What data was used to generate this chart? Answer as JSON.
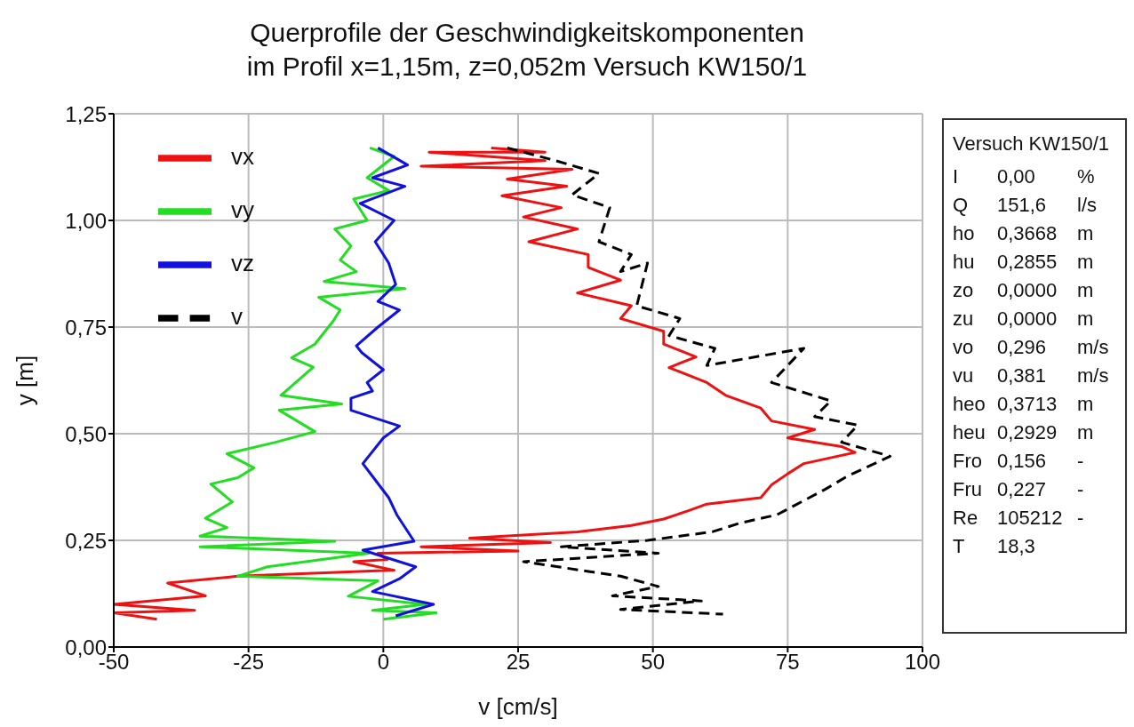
{
  "chart_data": {
    "type": "line",
    "title": "Querprofile der Geschwindigkeitskomponenten",
    "subtitle": "im Profil x=1,15m, z=0,052m Versuch KW150/1",
    "xlabel": "v [cm/s]",
    "ylabel": "y [m]",
    "xlim": [
      -50,
      100
    ],
    "xticks": [
      -50,
      -25,
      0,
      25,
      50,
      75,
      100
    ],
    "ylim": [
      0,
      1.25
    ],
    "yticks": [
      {
        "value": 0,
        "label": "0,00"
      },
      {
        "value": 0.25,
        "label": "0,25"
      },
      {
        "value": 0.5,
        "label": "0,50"
      },
      {
        "value": 0.75,
        "label": "0,75"
      },
      {
        "value": 1,
        "label": "1,00"
      },
      {
        "value": 1.25,
        "label": "1,25"
      }
    ],
    "grid": true,
    "legend": "top left",
    "marker": "none",
    "series": [
      {
        "name": "vx",
        "color": "#ee1111",
        "line_style": "solid",
        "x": [
          20,
          30,
          8.5,
          30,
          7,
          35,
          23,
          34,
          22,
          33,
          26,
          36,
          27,
          38,
          38,
          44,
          36,
          46,
          44,
          52,
          52,
          58,
          53,
          60,
          63.5,
          70,
          72,
          80,
          75,
          85,
          87.5,
          78,
          75,
          72,
          70,
          60,
          56.7,
          52,
          46,
          36,
          16,
          31,
          7,
          25,
          -1,
          0.7,
          -5.5,
          2,
          -27,
          -40,
          -33,
          -50,
          -35,
          -50,
          -42
        ],
        "values": [
          1.17,
          1.16,
          1.16,
          1.14,
          1.127,
          1.12,
          1.097,
          1.08,
          1.058,
          1.03,
          1.008,
          0.98,
          0.95,
          0.92,
          0.89,
          0.86,
          0.83,
          0.8,
          0.77,
          0.74,
          0.71,
          0.68,
          0.655,
          0.62,
          0.59,
          0.56,
          0.53,
          0.51,
          0.49,
          0.47,
          0.456,
          0.43,
          0.406,
          0.38,
          0.35,
          0.335,
          0.32,
          0.3,
          0.285,
          0.27,
          0.255,
          0.245,
          0.235,
          0.225,
          0.22,
          0.205,
          0.2,
          0.18,
          0.166,
          0.15,
          0.12,
          0.1,
          0.086,
          0.08,
          0.065
        ]
      },
      {
        "name": "vy",
        "color": "#22dd22",
        "line_style": "solid",
        "x": [
          -2.5,
          2,
          -3,
          1,
          -5.5,
          -3,
          -9,
          -6,
          -8,
          -5,
          -11,
          4,
          -12,
          -8,
          -9.3,
          -12.7,
          -17,
          -13,
          -19,
          -7.7,
          -19.3,
          -12.7,
          -20,
          -29,
          -24,
          -27,
          -32,
          -28,
          -33,
          -29,
          -34,
          -9,
          -34,
          -2.7,
          -21.5,
          -27,
          -1,
          -6.5,
          7.8,
          -2,
          9.8,
          0
        ],
        "values": [
          1.17,
          1.15,
          1.1,
          1.07,
          1.05,
          1.0,
          0.98,
          0.94,
          0.907,
          0.88,
          0.857,
          0.84,
          0.82,
          0.79,
          0.764,
          0.71,
          0.678,
          0.656,
          0.59,
          0.57,
          0.555,
          0.505,
          0.48,
          0.453,
          0.42,
          0.397,
          0.382,
          0.34,
          0.302,
          0.28,
          0.26,
          0.248,
          0.235,
          0.22,
          0.188,
          0.166,
          0.155,
          0.119,
          0.1,
          0.086,
          0.08,
          0.065
        ]
      },
      {
        "name": "vz",
        "color": "#1111dd",
        "line_style": "solid",
        "x": [
          -1,
          4.5,
          -2,
          4,
          -4.3,
          2,
          -1.5,
          1,
          2.3,
          -1,
          3,
          -1,
          -5,
          -4,
          0,
          -3,
          -2,
          -6,
          -6,
          3,
          0,
          -3.8,
          -2,
          1,
          2.5,
          5.7,
          -3.8,
          3,
          6,
          3,
          -2,
          9.3,
          2.3
        ],
        "values": [
          1.17,
          1.13,
          1.1,
          1.08,
          1.04,
          1.0,
          0.95,
          0.9,
          0.85,
          0.81,
          0.79,
          0.75,
          0.706,
          0.69,
          0.65,
          0.62,
          0.6,
          0.583,
          0.555,
          0.518,
          0.49,
          0.43,
          0.4,
          0.35,
          0.31,
          0.248,
          0.227,
          0.2,
          0.188,
          0.16,
          0.13,
          0.1,
          0.073
        ]
      },
      {
        "name": "v",
        "color": "#000000",
        "line_style": "dashed",
        "x": [
          23,
          32,
          40,
          35,
          42,
          40,
          46,
          44,
          49,
          47,
          55,
          53,
          61.5,
          60,
          78,
          72,
          83,
          80,
          88,
          85,
          94,
          86,
          82,
          79,
          76,
          73,
          66,
          61,
          55,
          49,
          33,
          51,
          26,
          44,
          51,
          42.5,
          59,
          44,
          63
        ],
        "values": [
          1.17,
          1.14,
          1.11,
          1.06,
          1.03,
          0.95,
          0.92,
          0.88,
          0.9,
          0.8,
          0.77,
          0.73,
          0.7,
          0.66,
          0.7,
          0.62,
          0.577,
          0.54,
          0.52,
          0.48,
          0.447,
          0.4,
          0.37,
          0.35,
          0.33,
          0.31,
          0.29,
          0.27,
          0.26,
          0.25,
          0.235,
          0.22,
          0.2,
          0.166,
          0.142,
          0.12,
          0.108,
          0.088,
          0.077
        ]
      }
    ],
    "annotations": [
      "Versuch KW150/1",
      "I 0,00 %",
      "Q 151,6 l/s",
      "ho 0,3668 m",
      "hu 0,2855 m",
      "zo 0,0000 m",
      "zu 0,0000 m",
      "vo 0,296 m/s",
      "vu 0,381 m/s",
      "heo 0,3713 m",
      "heu 0,2929 m",
      "Fro 0,156 -",
      "Fru 0,227 -",
      "Re 105212 -",
      "T 18,3"
    ]
  }
}
